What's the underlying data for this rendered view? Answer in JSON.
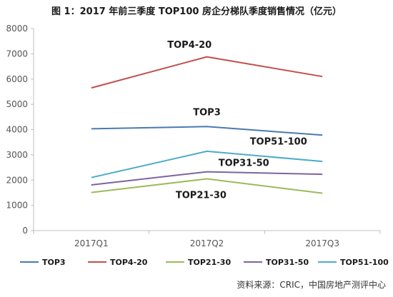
{
  "title": "图 1：2017 年前三季度 TOP100 房企分梯队季度销售情况（亿元）",
  "source": "资料来源：CRIC，中国房地产测评中心",
  "chart_data": {
    "type": "line",
    "title": "图 1：2017 年前三季度 TOP100 房企分梯队季度销售情况（亿元）",
    "categories": [
      "2017Q1",
      "2017Q2",
      "2017Q3"
    ],
    "ylim": [
      0,
      8000
    ],
    "yticks": [
      0,
      1000,
      2000,
      3000,
      4000,
      5000,
      6000,
      7000,
      8000
    ],
    "grid": false,
    "legend": "bottom",
    "series": [
      {
        "name": "TOP3",
        "values": [
          4030,
          4120,
          3780
        ],
        "color": "#4a7ab0",
        "label": "TOP3"
      },
      {
        "name": "TOP4-20",
        "values": [
          5650,
          6880,
          6100
        ],
        "color": "#c0504d",
        "label": "TOP4-20"
      },
      {
        "name": "TOP21-30",
        "values": [
          1510,
          2050,
          1480
        ],
        "color": "#9bbb59",
        "label": "TOP21-30"
      },
      {
        "name": "TOP31-50",
        "values": [
          1810,
          2330,
          2230
        ],
        "color": "#7e64a0",
        "label": "TOP31-50"
      },
      {
        "name": "TOP51-100",
        "values": [
          2100,
          3140,
          2740
        ],
        "color": "#4bacc6",
        "label": "TOP51-100"
      }
    ]
  }
}
